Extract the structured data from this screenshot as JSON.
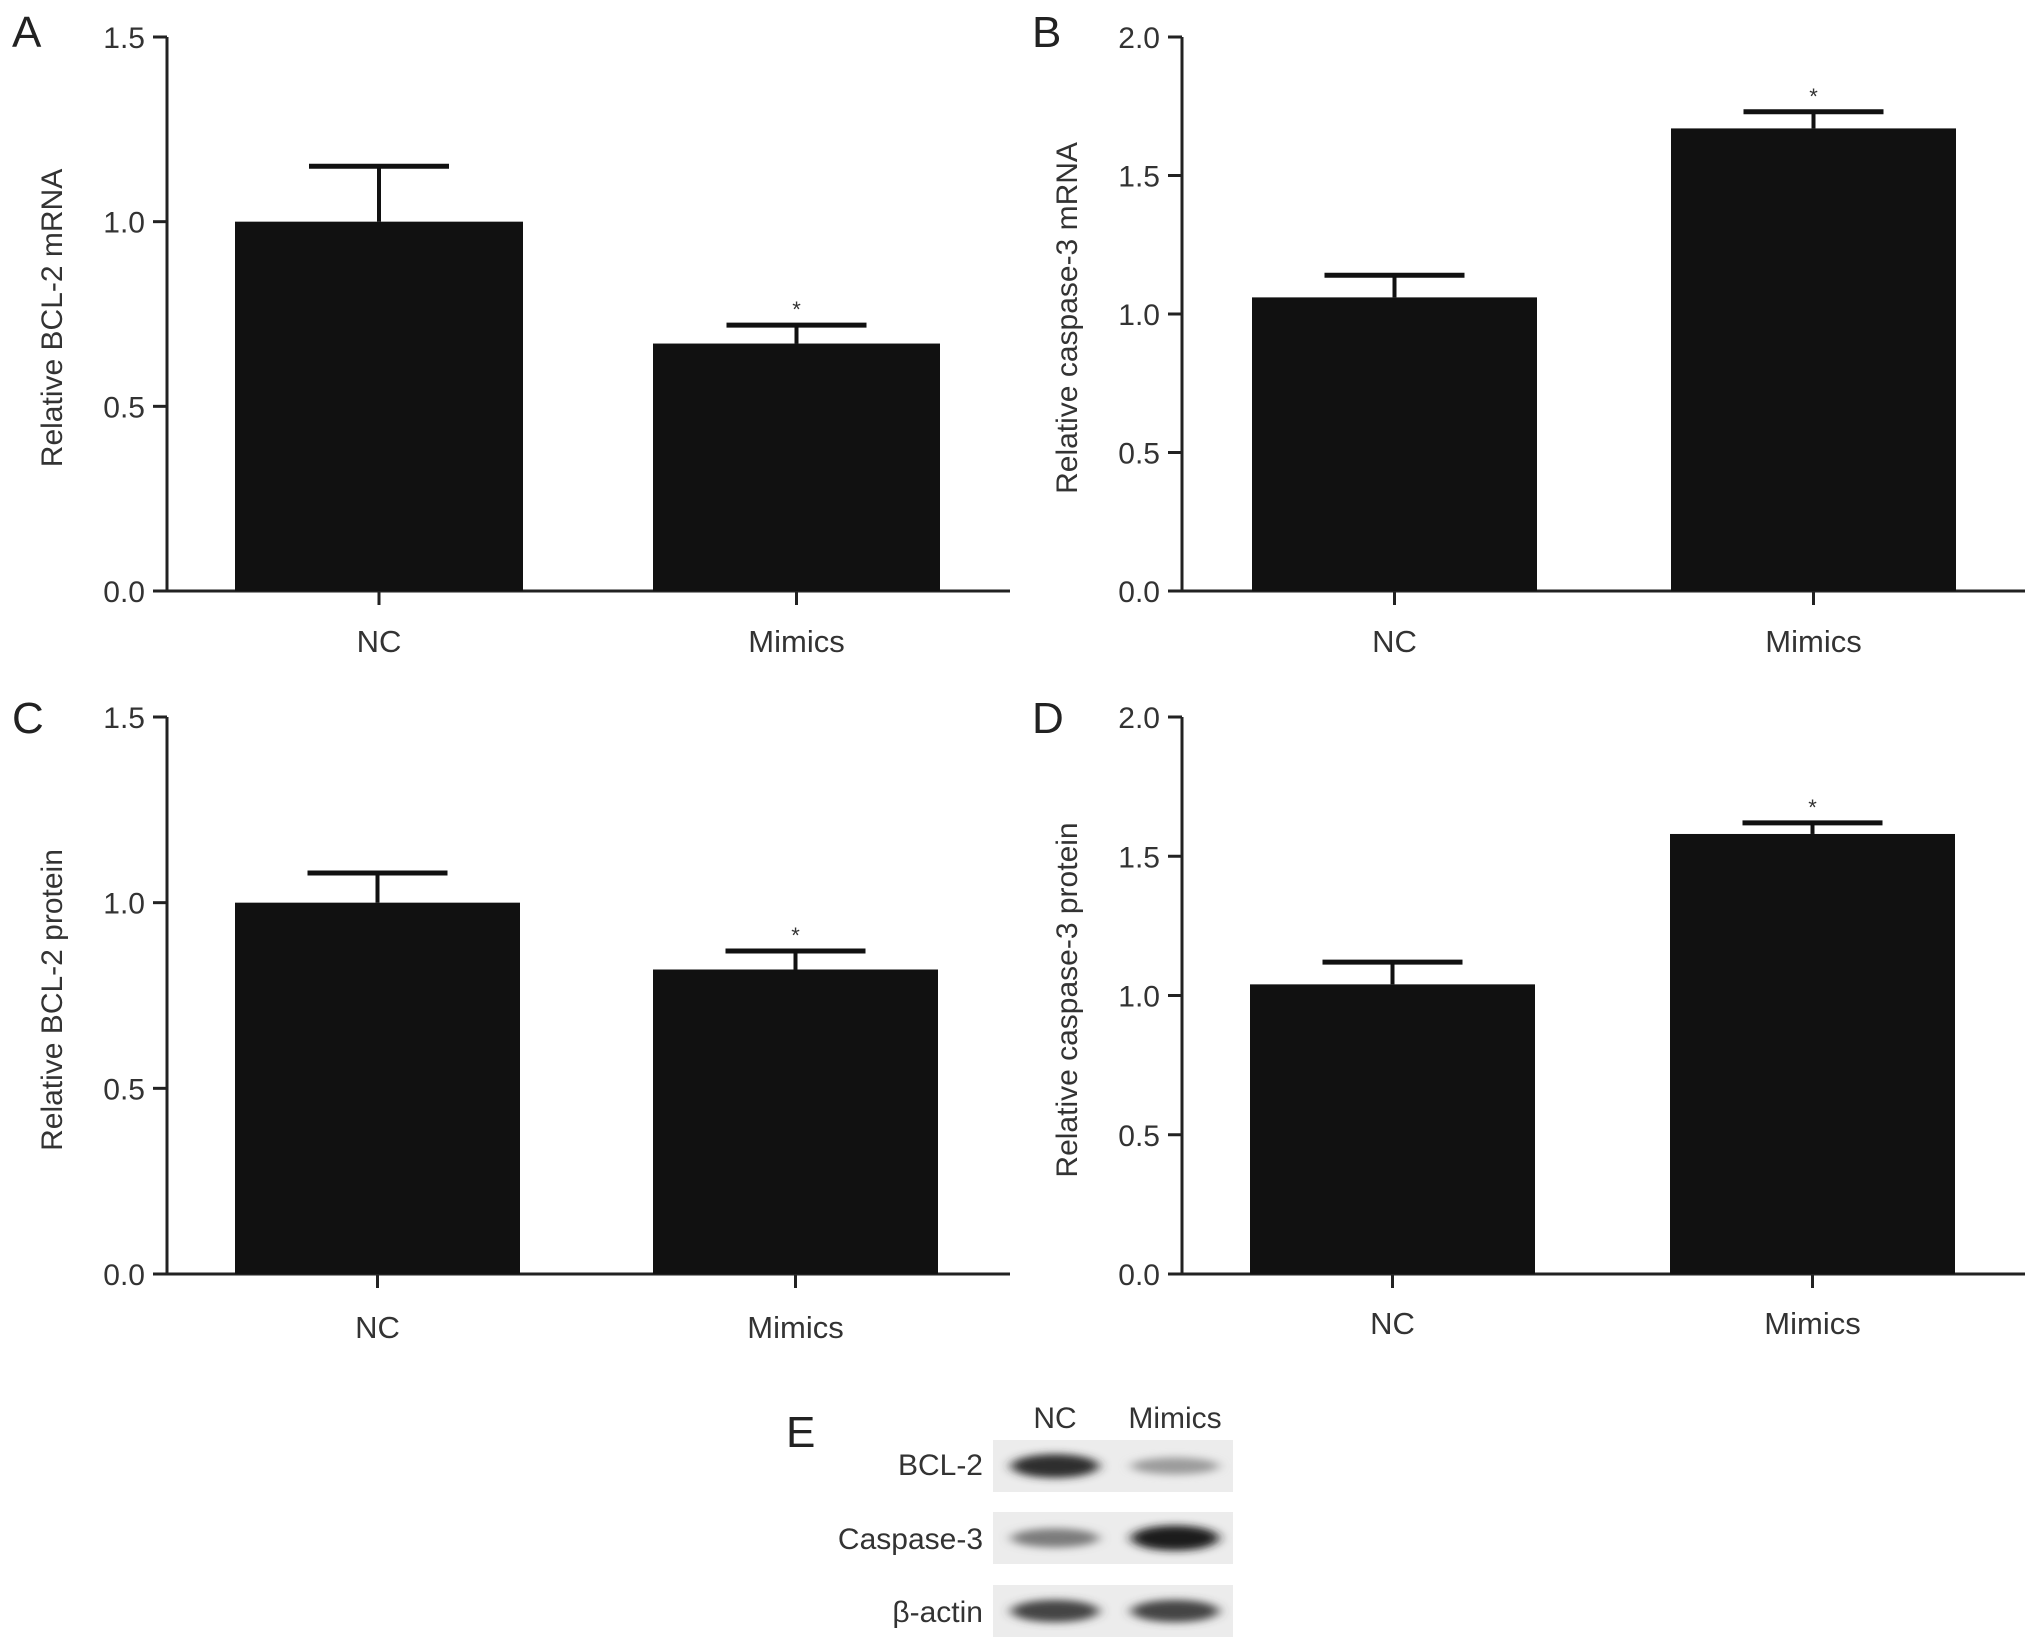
{
  "chart_data": [
    {
      "panel": "A",
      "type": "bar",
      "categories": [
        "NC",
        "Mimics"
      ],
      "values": [
        1.0,
        0.67
      ],
      "errors": [
        0.15,
        0.05
      ],
      "significance": [
        "",
        "*"
      ],
      "ylabel": "Relative BCL-2 mRNA",
      "ylim": [
        0,
        1.5
      ],
      "yticks": [
        "0.0",
        "0.5",
        "1.0",
        "1.5"
      ],
      "bar_color": "#111111"
    },
    {
      "panel": "B",
      "type": "bar",
      "categories": [
        "NC",
        "Mimics"
      ],
      "values": [
        1.06,
        1.67
      ],
      "errors": [
        0.08,
        0.06
      ],
      "significance": [
        "",
        "*"
      ],
      "ylabel": "Relative caspase-3 mRNA",
      "ylim": [
        0,
        2.0
      ],
      "yticks": [
        "0.0",
        "0.5",
        "1.0",
        "1.5",
        "2.0"
      ],
      "bar_color": "#111111"
    },
    {
      "panel": "C",
      "type": "bar",
      "categories": [
        "NC",
        "Mimics"
      ],
      "values": [
        1.0,
        0.82
      ],
      "errors": [
        0.08,
        0.05
      ],
      "significance": [
        "",
        "*"
      ],
      "ylabel": "Relative BCL-2 protein",
      "ylim": [
        0,
        1.5
      ],
      "yticks": [
        "0.0",
        "0.5",
        "1.0",
        "1.5"
      ],
      "bar_color": "#111111"
    },
    {
      "panel": "D",
      "type": "bar",
      "categories": [
        "NC",
        "Mimics"
      ],
      "values": [
        1.04,
        1.58
      ],
      "errors": [
        0.08,
        0.04
      ],
      "significance": [
        "",
        "*"
      ],
      "ylabel": "Relative caspase-3 protein",
      "ylim": [
        0,
        2.0
      ],
      "yticks": [
        "0.0",
        "0.5",
        "1.0",
        "1.5",
        "2.0"
      ],
      "bar_color": "#111111"
    }
  ],
  "blot": {
    "panel": "E",
    "lanes": [
      "NC",
      "Mimics"
    ],
    "rows": [
      {
        "label": "BCL-2",
        "band_intensity": [
          0.85,
          0.35
        ]
      },
      {
        "label": "Caspase-3",
        "band_intensity": [
          0.5,
          0.95
        ]
      },
      {
        "label": "β-actin",
        "band_intensity": [
          0.75,
          0.75
        ]
      }
    ]
  }
}
